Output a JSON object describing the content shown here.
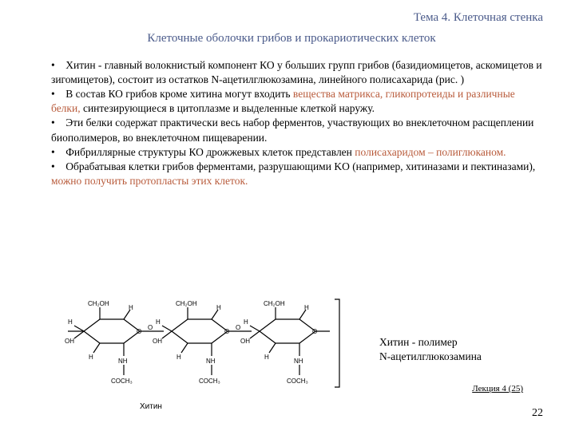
{
  "header": "Тема 4. Клеточная стенка",
  "subtitle": "Клеточные оболочки грибов и прокариотических клеток",
  "paragraphs": [
    {
      "pre": "• Хитин - главный волокнистый компонент КО у больших групп грибов (базидиомицетов, аскомицетов и зигомицетов), состоит из остатков N-ацетилглюкозамина, линейного полисахарида (рис. )",
      "hl": "",
      "post": ""
    },
    {
      "pre": "• В состав КО грибов кроме хитина могут входить ",
      "hl": "вещества матрикса, гликопротеиды и различные белки,",
      "post": " синтезирующиеся в цитоплазме и выделенные клеткой наружу."
    },
    {
      "pre": "• Эти белки содержат практически весь набор ферментов, участвующих во внеклеточном расщеплении биополимеров,  во внеклеточном пищеварении.",
      "hl": "",
      "post": ""
    },
    {
      "pre": "• Фибриллярные структуры КО дрожжевых  клеток представлен ",
      "hl": "полисахаридом – полиглюканом.",
      "post": ""
    },
    {
      "pre": "• Обрабатывая клетки грибов ферментами, разрушающими KO (например, хитиназами и пектиназами), ",
      "hl": "можно получить протопласты этих клеток.",
      "post": ""
    }
  ],
  "caption_l1": "Хитин - полимер",
  "caption_l2": "N-ацетилглюкозамина",
  "lecture": "Лекция 4 (25)",
  "pagenum": "22",
  "diag_label": "Хитин",
  "chem": {
    "ring_count": 3,
    "top_labels": [
      "CH₂OH",
      "CH₂OH",
      "CH₂OH"
    ],
    "ring_atoms": [
      "H",
      "H",
      "O",
      "H",
      "OH",
      "H"
    ],
    "nh_label": "NH",
    "coch3_label": "COCH₃",
    "oh_label": "OH",
    "stroke": "#000000",
    "stroke_width": 1.2
  }
}
